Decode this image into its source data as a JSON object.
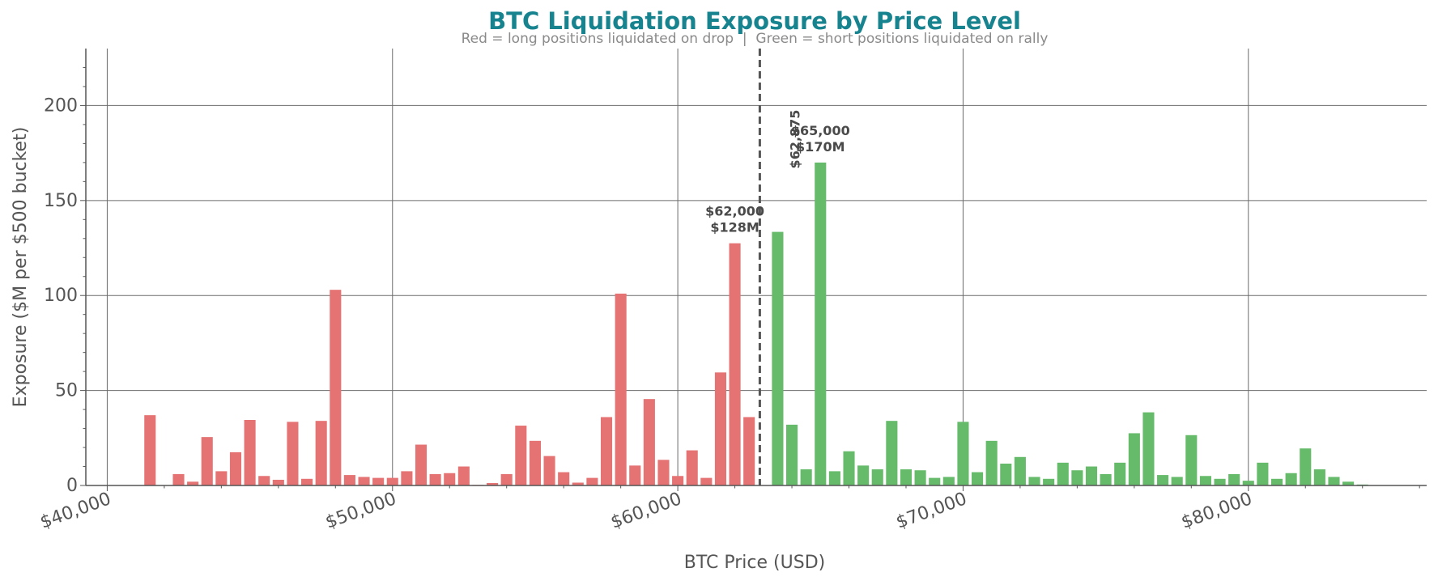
{
  "chart_data": {
    "type": "bar",
    "title": "BTC Liquidation Exposure by Price Level",
    "subtitle": "Red = long positions liquidated on drop  |  Green = short positions liquidated on rally",
    "xlabel": "BTC Price (USD)",
    "ylabel": "Exposure ($M per $500 bucket)",
    "xlim": [
      39250,
      86250
    ],
    "ylim": [
      0,
      230
    ],
    "xticks": [
      40000,
      50000,
      60000,
      70000,
      80000
    ],
    "xtick_labels": [
      "$40,000",
      "$50,000",
      "$60,000",
      "$70,000",
      "$80,000"
    ],
    "yticks": [
      0,
      50,
      100,
      150,
      200
    ],
    "ytick_labels": [
      "0",
      "50",
      "100",
      "150",
      "200"
    ],
    "grid": true,
    "colors": {
      "long": "#e57373",
      "short": "#66bb6a",
      "title": "#17838f",
      "marker": "#555555"
    },
    "current_price": 62875,
    "current_price_label": "$62,875",
    "series": [
      {
        "name": "long positions liquidated on drop",
        "x": [
          41500,
          42000,
          42500,
          43000,
          43500,
          44000,
          44500,
          45000,
          45500,
          46000,
          46500,
          47000,
          47500,
          48000,
          48500,
          49000,
          49500,
          50000,
          50500,
          51000,
          51500,
          52000,
          52500,
          53000,
          53500,
          54000,
          54500,
          55000,
          55500,
          56000,
          56500,
          57000,
          57500,
          58000,
          58500,
          59000,
          59500,
          60000,
          60500,
          61000,
          61500,
          62000,
          62500
        ],
        "values": [
          37,
          0,
          6,
          2,
          25.5,
          7.5,
          17.5,
          34.5,
          5,
          3,
          33.5,
          3.5,
          34,
          103,
          5.5,
          4.5,
          4,
          4,
          7.5,
          21.5,
          6,
          6.5,
          10,
          0.3,
          1.3,
          6,
          31.5,
          23.5,
          15.5,
          7,
          1.5,
          4,
          36,
          101,
          10.5,
          45.5,
          13.5,
          5,
          18.5,
          4,
          59.5,
          127.5,
          36
        ]
      },
      {
        "name": "short positions liquidated on rally",
        "x": [
          63500,
          64000,
          64500,
          65000,
          65500,
          66000,
          66500,
          67000,
          67500,
          68000,
          68500,
          69000,
          69500,
          70000,
          70500,
          71000,
          71500,
          72000,
          72500,
          73000,
          73500,
          74000,
          74500,
          75000,
          75500,
          76000,
          76500,
          77000,
          77500,
          78000,
          78500,
          79000,
          79500,
          80000,
          80500,
          81000,
          81500,
          82000,
          82500,
          83000,
          83500,
          84000
        ],
        "values": [
          133.5,
          32,
          8.5,
          170,
          7.5,
          18,
          10.5,
          8.5,
          34,
          8.5,
          8,
          4,
          4.5,
          33.5,
          7,
          23.5,
          11.5,
          15,
          4.5,
          3.5,
          12,
          8,
          10,
          6,
          12,
          27.5,
          38.5,
          5.5,
          4.5,
          26.5,
          5,
          3.5,
          6,
          2.5,
          12,
          3.5,
          6.5,
          19.5,
          8.5,
          4.5,
          2,
          0.5
        ]
      }
    ],
    "annotations": [
      {
        "x": 62000,
        "y": 127.5,
        "text_price": "$62,000",
        "text_value": "$128M"
      },
      {
        "x": 65000,
        "y": 170,
        "text_price": "$65,000",
        "text_value": "$170M"
      }
    ]
  }
}
